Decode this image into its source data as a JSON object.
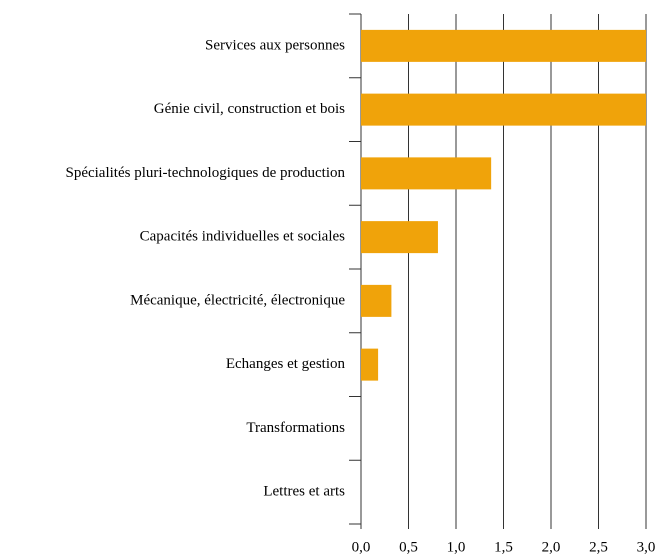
{
  "chart_data": {
    "type": "bar",
    "orientation": "horizontal",
    "categories": [
      "Services aux personnes",
      "Génie civil, construction et bois",
      "Spécialités pluri-technologiques de production",
      "Capacités individuelles et sociales",
      "Mécanique, électricité, électronique",
      "Echanges et gestion",
      "Transformations",
      "Lettres et arts"
    ],
    "values": [
      3.0,
      3.0,
      1.37,
      0.81,
      0.32,
      0.18,
      0,
      0
    ],
    "color": "#f0a30a",
    "xlim": [
      0,
      3.0
    ],
    "xticks": [
      {
        "value": 0,
        "label": "0,0"
      },
      {
        "value": 0.5,
        "label": "0,5"
      },
      {
        "value": 1.0,
        "label": "1,0"
      },
      {
        "value": 1.5,
        "label": "1,5"
      },
      {
        "value": 2.0,
        "label": "2,0"
      },
      {
        "value": 2.5,
        "label": "2,5"
      },
      {
        "value": 3.0,
        "label": "3,0"
      }
    ],
    "grid": true
  }
}
